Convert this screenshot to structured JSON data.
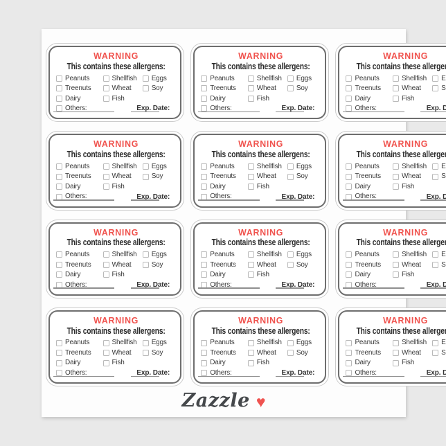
{
  "page": {
    "background_color": "#e9e9e9"
  },
  "sheet": {
    "background_color": "#fdfdfd",
    "rows": 4,
    "columns": 3,
    "sticker_count": 12
  },
  "label": {
    "warning_title": "WARNING",
    "warning_color": "#f0534e",
    "subtitle": "This contains these allergens:",
    "allergens": [
      "Peanuts",
      "Shellfish",
      "Eggs",
      "Treenuts",
      "Wheat",
      "Soy",
      "Dairy",
      "Fish"
    ],
    "others_label": "Others:",
    "exp_date_label": "Exp. Date:",
    "checkbox_icon": "empty-checkbox"
  },
  "brand": {
    "wordmark": "Zazzle",
    "heart_icon": "♥",
    "wordmark_color": "#45484b",
    "heart_color": "#ef5350"
  }
}
